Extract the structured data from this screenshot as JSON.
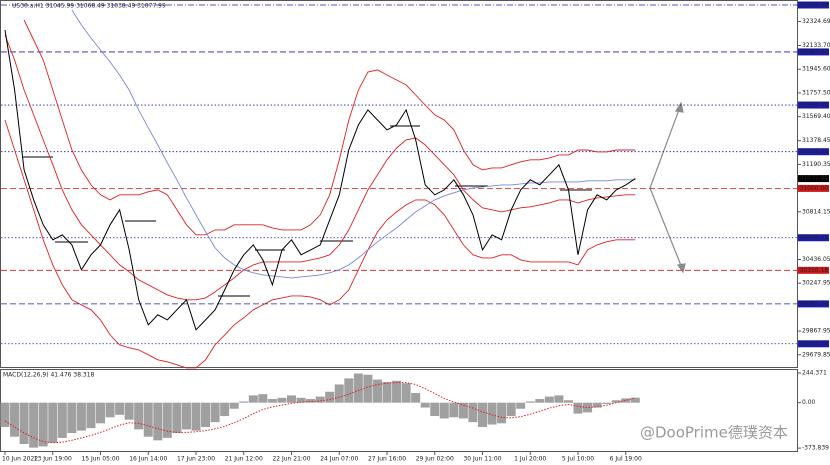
{
  "chart_data": [
    {
      "type": "line",
      "title": "US30.a,H1 31045.99 31068.49 31038.49 31077.99",
      "ylim": [
        29575,
        32495
      ],
      "yticks": [
        32324.69,
        {
          "value": 32133.7,
          "label": "32133.70"
        },
        {
          "value": 31945.6,
          "label": "31945.60"
        },
        {
          "value": 31757.5,
          "label": "31757.50"
        },
        {
          "value": 31569.4,
          "label": "31569.40"
        },
        31378.45,
        31190.35,
        30814.15,
        30436.05,
        30247.95,
        29867.95,
        29679.85
      ],
      "levels": [
        {
          "value": 32455.3,
          "label": "32455.30",
          "color": "#1c1ca8",
          "style": "dashdot"
        },
        {
          "value": 32083,
          "label": "32083.00",
          "color": "#1c1ca8",
          "style": "dashed"
        },
        {
          "value": 31661.46,
          "label": "31661.46",
          "color": "#1c1ca8",
          "style": "dotted"
        },
        {
          "value": 31291.23,
          "label": "31291.23",
          "color": "#1c1ca8",
          "style": "dotted"
        },
        {
          "value": 31077.99,
          "label": "31077.99",
          "color": "#000000",
          "style": "none"
        },
        {
          "value": 31000,
          "label": "31000.00",
          "color": "#d01818",
          "style": "dashed"
        },
        {
          "value": 30608.62,
          "label": "30608.62",
          "color": "#1c1ca8",
          "style": "dotted"
        },
        {
          "value": 30350.18,
          "label": "30350.18",
          "color": "#d01818",
          "style": "dashed"
        },
        {
          "value": 30083.7,
          "label": "30083.70",
          "color": "#1c1ca8",
          "style": "dashed"
        },
        {
          "value": 29767.17,
          "label": "29767.17",
          "color": "#1c1ca8",
          "style": "dotted"
        }
      ],
      "series": [
        {
          "color": "#e02020",
          "values": [
            null,
            null,
            32336,
            32178,
            32019,
            31781,
            31543,
            31305,
            31147,
            31028,
            30949,
            30909,
            30949,
            30949,
            30949,
            30973,
            30988,
            30949,
            30830,
            30711,
            30632,
            30632,
            30671,
            30671,
            30711,
            30711,
            30711,
            30711,
            30687,
            30671,
            30671,
            30671,
            30711,
            30790,
            30949,
            31227,
            31543,
            31781,
            31924,
            31940,
            31900,
            31860,
            31821,
            31741,
            31662,
            31583,
            31543,
            31464,
            31305,
            31187,
            31147,
            31163,
            31163,
            31187,
            31211,
            31227,
            31227,
            31242,
            31266,
            31266,
            31305,
            31305,
            31290,
            31290,
            31305,
            31305,
            31305
          ]
        },
        {
          "color": "#e02020",
          "values": [
            32217,
            32019,
            31781,
            31583,
            31385,
            31187,
            30988,
            30830,
            30711,
            30632,
            30552,
            30473,
            30393,
            30338,
            30274,
            30235,
            30195,
            30155,
            30131,
            30116,
            30116,
            30131,
            30179,
            30235,
            30290,
            30354,
            30393,
            30417,
            30417,
            30417,
            30417,
            30417,
            30433,
            30449,
            30473,
            30552,
            30671,
            30830,
            30988,
            31108,
            31227,
            31321,
            31385,
            31401,
            31345,
            31266,
            31187,
            31108,
            30988,
            30909,
            30846,
            30830,
            30814,
            30830,
            30846,
            30854,
            30869,
            30885,
            30909,
            30909,
            30885,
            30909,
            30925,
            30933,
            30941,
            30949,
            30949
          ]
        },
        {
          "color": "#e02020",
          "values": [
            31543,
            31305,
            31068,
            30830,
            30592,
            30393,
            30235,
            30116,
            30076,
            30037,
            29957,
            29838,
            29759,
            29735,
            29719,
            29680,
            29640,
            29624,
            29600,
            29576,
            29576,
            29640,
            29759,
            29838,
            29918,
            29973,
            30037,
            30076,
            30116,
            30131,
            30147,
            30147,
            30139,
            30116,
            30076,
            30116,
            30195,
            30354,
            30512,
            30655,
            30750,
            30814,
            30869,
            30909,
            30909,
            30869,
            30790,
            30671,
            30552,
            30473,
            30449,
            30449,
            30473,
            30473,
            30433,
            30417,
            30417,
            30417,
            30417,
            30417,
            30393,
            30512,
            30552,
            30576,
            30592,
            30592,
            30592
          ]
        },
        {
          "color": "#7a86d8",
          "values": [
            null,
            null,
            null,
            null,
            null,
            null,
            null,
            32416,
            32297,
            32193,
            32098,
            32003,
            31900,
            31781,
            31623,
            31480,
            31345,
            31202,
            31068,
            30925,
            30790,
            30655,
            30528,
            30449,
            30393,
            30354,
            30330,
            30314,
            30306,
            30298,
            30290,
            30298,
            30306,
            30314,
            30330,
            30354,
            30393,
            30449,
            30512,
            30576,
            30632,
            30687,
            30750,
            30814,
            30861,
            30909,
            30941,
            30965,
            30988,
            31004,
            31012,
            31020,
            31028,
            31028,
            31036,
            31044,
            31044,
            31052,
            31052,
            31052,
            31052,
            31060,
            31060,
            31060,
            31068,
            31068,
            31068
          ]
        },
        {
          "color": "#000000",
          "values": [
            32257,
            31781,
            31147,
            30909,
            30711,
            30592,
            30631,
            30552,
            30354,
            30473,
            30552,
            30711,
            30830,
            30512,
            30116,
            29918,
            29997,
            29957,
            30037,
            30116,
            29878,
            29957,
            30037,
            30195,
            30354,
            30473,
            30552,
            30433,
            30235,
            30512,
            30592,
            30473,
            30512,
            30552,
            30750,
            30949,
            31306,
            31504,
            31623,
            31543,
            31464,
            31504,
            31623,
            31385,
            31028,
            30949,
            30988,
            31068,
            30949,
            30790,
            30512,
            30631,
            30592,
            30830,
            30988,
            31068,
            31028,
            31108,
            31187,
            30988,
            30473,
            30830,
            30949,
            30909,
            30988,
            31028,
            31077.99
          ]
        }
      ]
    },
    {
      "type": "macd",
      "title": "MACD(12,26,9) 41.476 38.318",
      "ylim": [
        -406,
        269
      ],
      "yticks": [
        244.371,
        {
          "value": 0,
          "label": "0.00"
        },
        -373.839
      ],
      "categories": [
        "10 Jun 2022",
        null,
        null,
        null,
        null,
        "13 Jun 19:00",
        null,
        null,
        null,
        null,
        "15 Jun 05:00",
        null,
        null,
        null,
        null,
        "16 Jun 14:00",
        null,
        null,
        null,
        null,
        "17 Jun 23:00",
        null,
        null,
        null,
        null,
        "21 Jun 12:00",
        null,
        null,
        null,
        null,
        "22 Jun 21:00",
        null,
        null,
        null,
        null,
        "24 Jun 07:00",
        null,
        null,
        null,
        null,
        "27 Jun 16:00",
        null,
        null,
        null,
        null,
        "29 Jun 02:00",
        null,
        null,
        null,
        null,
        "30 Jun 11:00",
        null,
        null,
        null,
        null,
        "1 Jul 20:00",
        null,
        null,
        null,
        null,
        "5 Jul 10:00",
        null,
        null,
        null,
        null,
        "6 Jul 19:00",
        null
      ],
      "series": [
        {
          "color": "#a0a0a0",
          "values": [
            -200,
            -280,
            -340,
            -370,
            -360,
            -330,
            -290,
            -250,
            -230,
            -210,
            -170,
            -120,
            -100,
            -140,
            -220,
            -280,
            -310,
            -290,
            -250,
            -220,
            -230,
            -200,
            -160,
            -110,
            -50,
            10,
            60,
            70,
            30,
            40,
            60,
            40,
            30,
            50,
            90,
            150,
            200,
            240,
            230,
            190,
            170,
            180,
            160,
            80,
            -40,
            -110,
            -130,
            -120,
            -130,
            -160,
            -200,
            -180,
            -170,
            -110,
            -50,
            10,
            30,
            50,
            60,
            20,
            -90,
            -80,
            -40,
            -10,
            20,
            35,
            41.476
          ]
        },
        {
          "color": "#e02020",
          "values": [
            -150,
            -200,
            -250,
            -290,
            -320,
            -330,
            -325,
            -310,
            -290,
            -270,
            -245,
            -215,
            -185,
            -165,
            -170,
            -190,
            -215,
            -235,
            -245,
            -245,
            -240,
            -230,
            -215,
            -195,
            -165,
            -130,
            -90,
            -55,
            -35,
            -20,
            -5,
            5,
            10,
            15,
            25,
            45,
            70,
            100,
            130,
            150,
            160,
            165,
            165,
            150,
            115,
            75,
            35,
            5,
            -20,
            -45,
            -75,
            -100,
            -120,
            -125,
            -115,
            -95,
            -70,
            -45,
            -25,
            -15,
            -30,
            -40,
            -35,
            -20,
            0,
            20,
            38.318
          ]
        }
      ]
    }
  ],
  "watermark": "@DooPrime德璞资本"
}
